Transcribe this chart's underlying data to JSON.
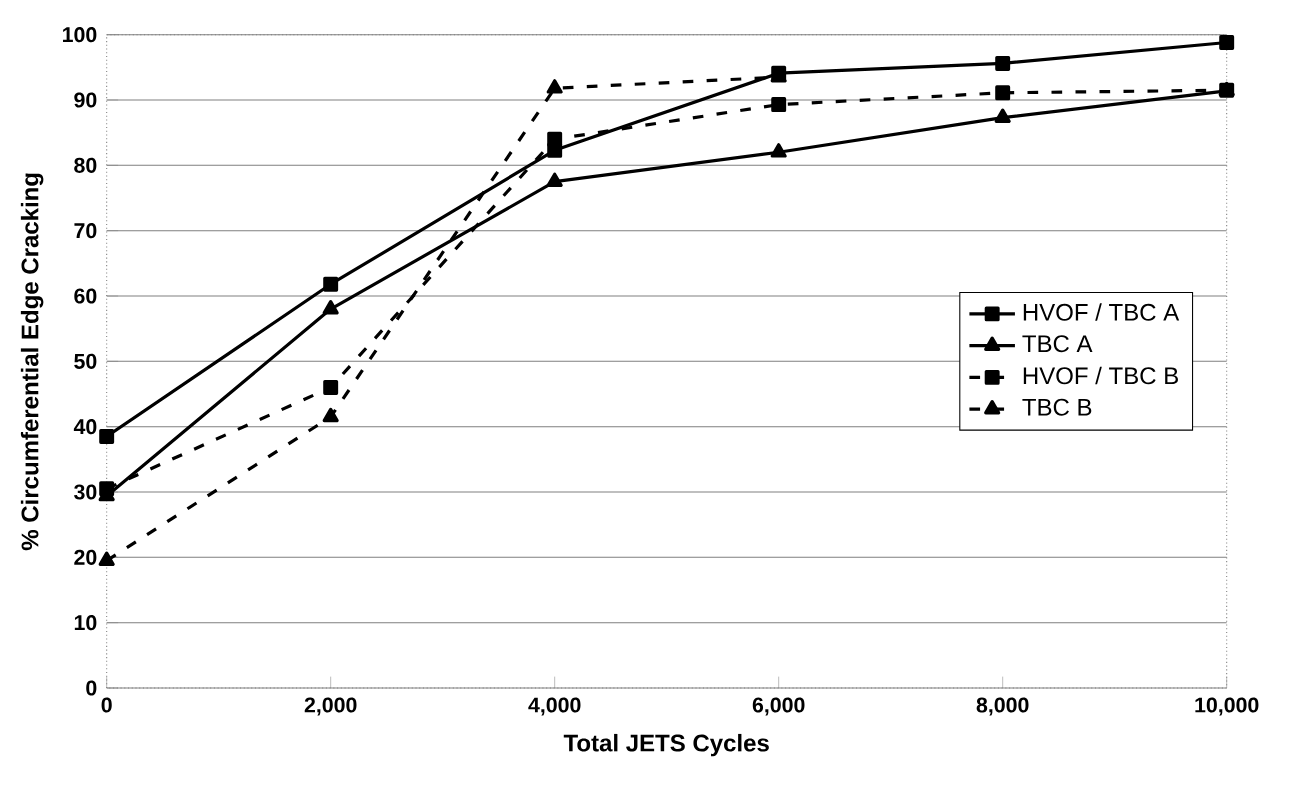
{
  "chart_data": {
    "type": "line",
    "xlabel": "Total JETS Cycles",
    "ylabel": "% Circumferential Edge Cracking",
    "x": [
      0,
      2000,
      4000,
      6000,
      8000,
      10000
    ],
    "series": [
      {
        "name": "HVOF / TBC A",
        "color": "#000000",
        "marker": "square",
        "line_style": "solid",
        "values": [
          38.5,
          61.8,
          82.3,
          94.1,
          95.6,
          98.8
        ]
      },
      {
        "name": "TBC A",
        "color": "#000000",
        "marker": "triangle",
        "line_style": "solid",
        "values": [
          29.4,
          58,
          77.5,
          82,
          87.3,
          91.4
        ]
      },
      {
        "name": "HVOF / TBC B",
        "color": "#000000",
        "marker": "square",
        "line_style": "dashed",
        "values": [
          30.5,
          46,
          84,
          89.3,
          91.1,
          91.5
        ]
      },
      {
        "name": "TBC B",
        "color": "#000000",
        "marker": "triangle",
        "line_style": "dashed",
        "values": [
          19.5,
          41.5,
          91.8,
          93.5,
          null,
          null
        ]
      }
    ],
    "xlim": [
      0,
      10000
    ],
    "ylim": [
      0,
      100
    ],
    "xticks": [
      0,
      {
        "value": 2000,
        "label": "2,000"
      },
      {
        "value": 4000,
        "label": "4,000"
      },
      {
        "value": 6000,
        "label": "6,000"
      },
      {
        "value": 8000,
        "label": "8,000"
      },
      {
        "value": 10000,
        "label": "10,000"
      }
    ],
    "yticks": [
      0,
      10,
      20,
      30,
      40,
      50,
      60,
      70,
      80,
      90,
      100
    ],
    "grid": "y",
    "legend": "right"
  }
}
